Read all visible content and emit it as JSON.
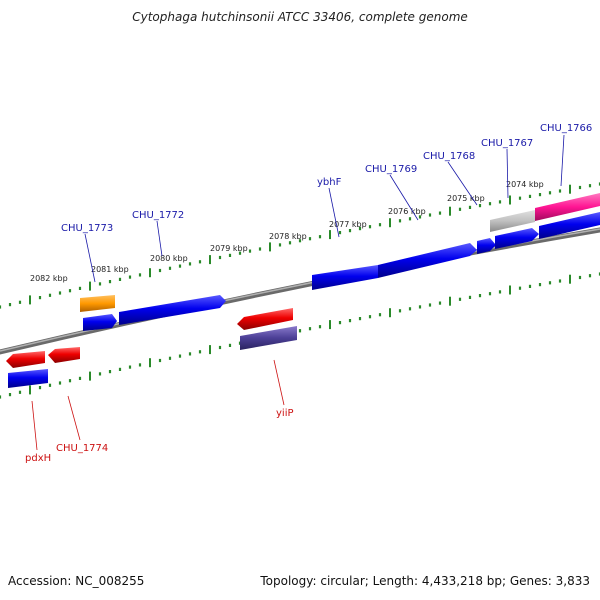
{
  "title": "Cytophaga hutchinsonii ATCC 33406, complete genome",
  "footer": {
    "accession": "Accession: NC_008255",
    "summary": "Topology: circular; Length: 4,433,218 bp; Genes: 3,833"
  },
  "colors": {
    "forward_label": "#1a1aa8",
    "reverse_label": "#cc1111",
    "tick": "#2a8a2a",
    "backbone": "#808080"
  },
  "kbp_labels": [
    "2082 kbp",
    "2081 kbp",
    "2080 kbp",
    "2079 kbp",
    "2078 kbp",
    "2077 kbp",
    "2076 kbp",
    "2075 kbp",
    "2074 kbp"
  ],
  "gene_labels": {
    "forward": [
      "CHU_1773",
      "CHU_1772",
      "ybhF",
      "CHU_1769",
      "CHU_1768",
      "CHU_1767",
      "CHU_1766"
    ],
    "reverse": [
      "pdxH",
      "CHU_1774",
      "yiiP"
    ]
  }
}
